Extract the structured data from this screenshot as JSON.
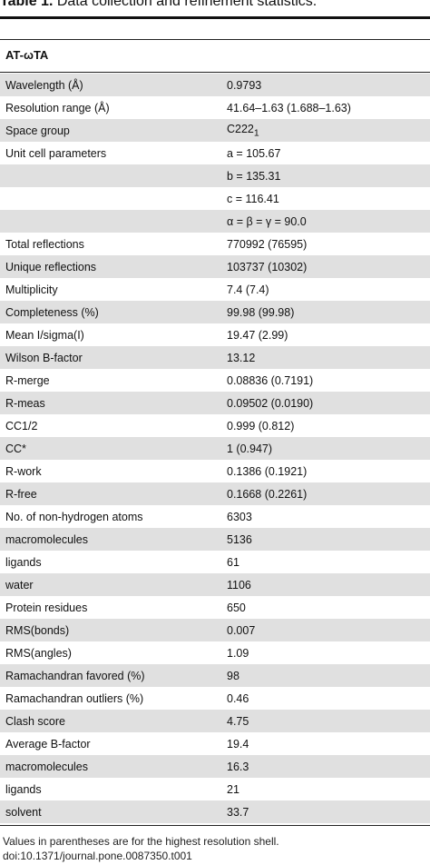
{
  "table": {
    "number": "Table 1.",
    "caption": "Data collection and refinement statistics.",
    "section": "AT-ωTA",
    "rows": [
      {
        "label": "Wavelength (Å)",
        "value": "0.9793"
      },
      {
        "label": "Resolution range (Å)",
        "value": "41.64–1.63 (1.688–1.63)"
      },
      {
        "label": "Space group",
        "value": "C222",
        "sub": "1"
      },
      {
        "label": "Unit cell parameters",
        "value": "a = 105.67"
      },
      {
        "label": "",
        "value": "b = 135.31"
      },
      {
        "label": "",
        "value": "c = 116.41"
      },
      {
        "label": "",
        "value": "α = β = γ = 90.0"
      },
      {
        "label": "Total reflections",
        "value": "770992 (76595)"
      },
      {
        "label": "Unique reflections",
        "value": "103737 (10302)"
      },
      {
        "label": "Multiplicity",
        "value": "7.4 (7.4)"
      },
      {
        "label": "Completeness (%)",
        "value": "99.98 (99.98)"
      },
      {
        "label": "Mean I/sigma(I)",
        "value": "19.47 (2.99)"
      },
      {
        "label": "Wilson B-factor",
        "value": "13.12"
      },
      {
        "label": "R-merge",
        "value": "0.08836 (0.7191)"
      },
      {
        "label": "R-meas",
        "value": "0.09502 (0.0190)"
      },
      {
        "label": "CC1/2",
        "value": "0.999 (0.812)"
      },
      {
        "label": "CC*",
        "value": "1 (0.947)"
      },
      {
        "label": "R-work",
        "value": "0.1386 (0.1921)"
      },
      {
        "label": "R-free",
        "value": "0.1668 (0.2261)"
      },
      {
        "label": "No. of non-hydrogen atoms",
        "value": "6303"
      },
      {
        "label": "macromolecules",
        "value": "5136"
      },
      {
        "label": "ligands",
        "value": "61"
      },
      {
        "label": "water",
        "value": "1106"
      },
      {
        "label": "Protein residues",
        "value": "650"
      },
      {
        "label": "RMS(bonds)",
        "value": "0.007"
      },
      {
        "label": "RMS(angles)",
        "value": "1.09"
      },
      {
        "label": "Ramachandran favored (%)",
        "value": "98"
      },
      {
        "label": "Ramachandran outliers (%)",
        "value": "0.46"
      },
      {
        "label": "Clash score",
        "value": "4.75"
      },
      {
        "label": "Average B-factor",
        "value": "19.4"
      },
      {
        "label": "macromolecules",
        "value": "16.3"
      },
      {
        "label": "ligands",
        "value": "21"
      },
      {
        "label": "solvent",
        "value": "33.7"
      }
    ],
    "footnote": "Values in parentheses are for the highest resolution shell.",
    "doi": "doi:10.1371/journal.pone.0087350.t001"
  },
  "colors": {
    "row_shade": "#e0e0e0",
    "rule": "#111111"
  }
}
